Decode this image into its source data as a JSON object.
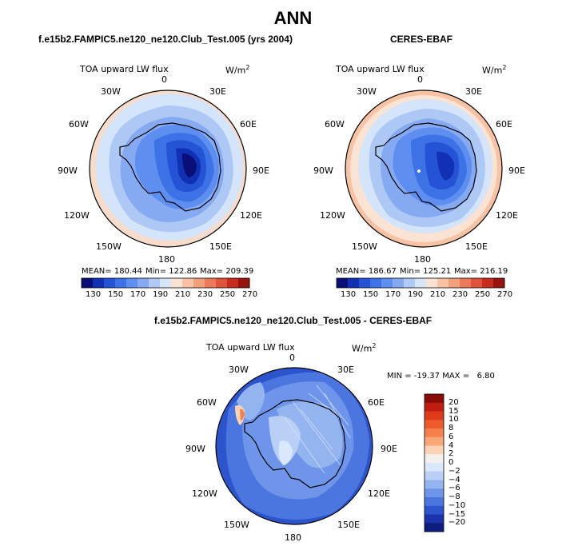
{
  "main_title": "ANN",
  "panels": {
    "model": {
      "title": "f.e15b2.FAMPIC5.ne120_ne120.Club_Test.005 (yrs 2004)",
      "variable": "TOA upward LW flux",
      "units": "W/m",
      "units_exp": "2",
      "stats": {
        "mean": "MEAN= 180.44",
        "min": "Min= 122.86",
        "max": "Max= 209.39"
      }
    },
    "obs": {
      "title": "CERES-EBAF",
      "variable": "TOA upward LW flux",
      "units": "W/m",
      "units_exp": "2",
      "stats": {
        "mean": "MEAN= 186.67",
        "min": "Min= 125.21",
        "max": "Max= 216.19"
      }
    },
    "diff": {
      "title": "f.e15b2.FAMPIC5.ne120_ne120.Club_Test.005 - CERES-EBAF",
      "variable": "TOA upward LW flux",
      "units": "W/m",
      "units_exp": "2",
      "stats": "MIN = -19.37 MAX =   6.80"
    }
  },
  "longitude_labels": [
    "0",
    "30E",
    "60E",
    "90E",
    "120E",
    "150E",
    "180",
    "150W",
    "120W",
    "90W",
    "60W",
    "30W"
  ],
  "colorbar_abs": {
    "ticks": [
      "130",
      "150",
      "170",
      "190",
      "210",
      "230",
      "250",
      "270"
    ],
    "colors": [
      "#0a0f78",
      "#1230b4",
      "#2453d6",
      "#3c72e6",
      "#5d8ef0",
      "#86aaf2",
      "#b0c9f7",
      "#d8e6fb",
      "#fbe3d4",
      "#f8c3a4",
      "#f2a07c",
      "#ec7a5a",
      "#e0523a",
      "#c82b1e",
      "#98120e"
    ]
  },
  "colorbar_diff": {
    "ticks": [
      "20",
      "15",
      "10",
      "8",
      "6",
      "4",
      "2",
      "0",
      "−2",
      "−4",
      "−6",
      "−8",
      "−10",
      "−15",
      "−20"
    ],
    "colors": [
      "#8a0c08",
      "#bd1e10",
      "#dd3b1a",
      "#ee5a2c",
      "#f5804e",
      "#f9a679",
      "#fcd2b5",
      "#f3f0ee",
      "#dbe7fb",
      "#b9cff6",
      "#94b4f0",
      "#6e95ea",
      "#4b76e0",
      "#2c54cd",
      "#1a33aa",
      "#0b1c7e"
    ]
  }
}
